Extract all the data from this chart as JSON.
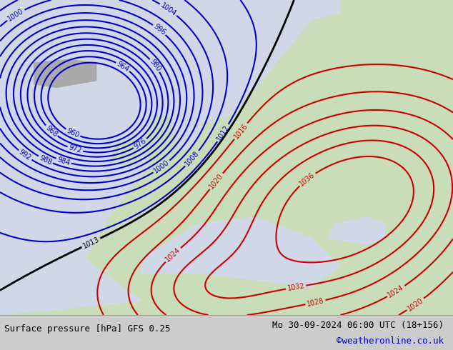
{
  "title_left": "Surface pressure [hPa] GFS 0.25",
  "title_right": "Mo 30-09-2024 06:00 UTC (18+156)",
  "title_right2": "©weatheronline.co.uk",
  "background_color": "#b8d4a8",
  "sea_color": "#d0d8e8",
  "land_color": "#c8ddb8",
  "fig_bg": "#cccccc",
  "bottom_bg": "#ffffff",
  "isobar_low_color": "#0000cc",
  "isobar_high_color": "#cc0000",
  "isobar_mid_color": "#000000",
  "label_color_low": "#0000cc",
  "label_color_high": "#cc0000",
  "label_color_mid": "#000000",
  "figsize": [
    6.34,
    4.9
  ],
  "dpi": 100,
  "bottom_text_color": "#000000",
  "credit_color": "#0000cc"
}
